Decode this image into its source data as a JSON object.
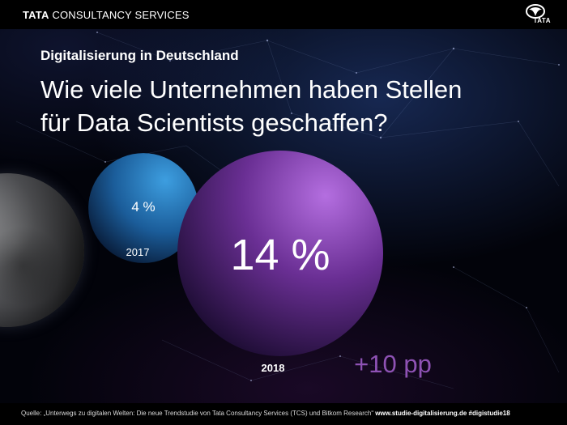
{
  "header": {
    "brand_strong": "TATA",
    "brand_rest": "CONSULTANCY SERVICES",
    "logo_text": "TATA"
  },
  "slide": {
    "subtitle": "Digitalisierung in Deutschland",
    "question": "Wie viele Unternehmen haben Stellen für Data Scientists geschaffen?"
  },
  "chart_data": {
    "type": "bubble",
    "title": "Wie viele Unternehmen haben Stellen für Data Scientists geschaffen?",
    "subtitle": "Digitalisierung in Deutschland",
    "categories": [
      "2017",
      "2018"
    ],
    "values": [
      4,
      14
    ],
    "value_labels": [
      "4 %",
      "14 %"
    ],
    "unit": "%",
    "annotation": "+10 pp",
    "colors": [
      "#1f6fb0",
      "#7a3fa6"
    ]
  },
  "footer": {
    "source": "Quelle: „Unterwegs zu digitalen Welten: Die neue Trendstudie von Tata Consultancy Services (TCS) und Bitkom Research“",
    "links": "www.studie-digitalisierung.de #digistudie18"
  }
}
